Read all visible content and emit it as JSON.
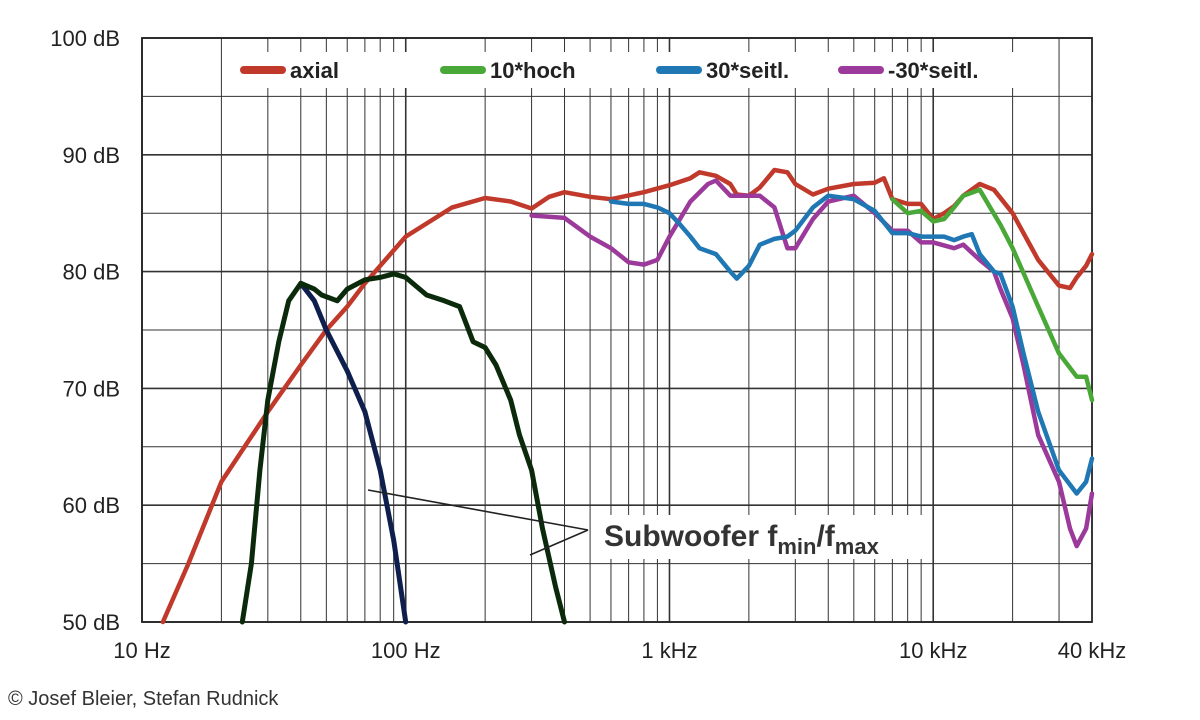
{
  "copyright": "© Josef Bleier, Stefan Rudnick",
  "chart_data": {
    "type": "line",
    "xscale": "log",
    "xlim": [
      10,
      40000
    ],
    "ylim": [
      50,
      100
    ],
    "grid": true,
    "legend_position": "top",
    "x_ticks": [
      {
        "value": 10,
        "label": "10 Hz"
      },
      {
        "value": 100,
        "label": "100 Hz"
      },
      {
        "value": 1000,
        "label": "1 kHz"
      },
      {
        "value": 10000,
        "label": "10 kHz"
      },
      {
        "value": 40000,
        "label": "40 kHz"
      }
    ],
    "y_ticks": [
      {
        "value": 100,
        "label": "100 dB"
      },
      {
        "value": 90,
        "label": "90 dB"
      },
      {
        "value": 80,
        "label": "80 dB"
      },
      {
        "value": 70,
        "label": "70 dB"
      },
      {
        "value": 60,
        "label": "60 dB"
      },
      {
        "value": 50,
        "label": "50 dB"
      }
    ],
    "legend": [
      {
        "name": "axial",
        "color": "#c0392b"
      },
      {
        "name": "10*hoch",
        "color": "#4aa838"
      },
      {
        "name": "30*seitl.",
        "color": "#1f77b4"
      },
      {
        "name": "-30*seitl.",
        "color": "#9b3a9b"
      }
    ],
    "annotation": {
      "text": "Subwoofer f",
      "sub1": "min",
      "slash": "/f",
      "sub2": "max"
    },
    "series": [
      {
        "name": "axial",
        "color": "#c0392b",
        "points": [
          [
            12,
            50
          ],
          [
            15,
            55
          ],
          [
            20,
            62
          ],
          [
            30,
            68
          ],
          [
            40,
            72
          ],
          [
            50,
            75
          ],
          [
            60,
            77
          ],
          [
            70,
            79
          ],
          [
            80,
            80.5
          ],
          [
            100,
            83
          ],
          [
            150,
            85.5
          ],
          [
            200,
            86.3
          ],
          [
            250,
            86
          ],
          [
            300,
            85.4
          ],
          [
            350,
            86.4
          ],
          [
            400,
            86.8
          ],
          [
            500,
            86.4
          ],
          [
            600,
            86.2
          ],
          [
            800,
            86.8
          ],
          [
            1000,
            87.4
          ],
          [
            1200,
            88
          ],
          [
            1300,
            88.5
          ],
          [
            1500,
            88.2
          ],
          [
            1700,
            87.5
          ],
          [
            1800,
            86.6
          ],
          [
            2000,
            86.5
          ],
          [
            2200,
            87.2
          ],
          [
            2500,
            88.7
          ],
          [
            2800,
            88.5
          ],
          [
            3000,
            87.5
          ],
          [
            3500,
            86.6
          ],
          [
            4000,
            87.1
          ],
          [
            5000,
            87.5
          ],
          [
            6000,
            87.6
          ],
          [
            6500,
            88
          ],
          [
            7000,
            86.2
          ],
          [
            8000,
            85.8
          ],
          [
            9000,
            85.8
          ],
          [
            10000,
            84.5
          ],
          [
            11000,
            85
          ],
          [
            12000,
            85.6
          ],
          [
            13000,
            86.5
          ],
          [
            15000,
            87.5
          ],
          [
            17000,
            87
          ],
          [
            20000,
            85
          ],
          [
            25000,
            81
          ],
          [
            30000,
            78.8
          ],
          [
            33000,
            78.6
          ],
          [
            35000,
            79.5
          ],
          [
            38000,
            80.5
          ],
          [
            40000,
            81.5
          ]
        ]
      },
      {
        "name": "10*hoch",
        "color": "#4aa838",
        "points": [
          [
            7000,
            86.2
          ],
          [
            8000,
            85
          ],
          [
            9000,
            85.2
          ],
          [
            10000,
            84.3
          ],
          [
            11000,
            84.5
          ],
          [
            12000,
            85.5
          ],
          [
            13000,
            86.5
          ],
          [
            15000,
            87
          ],
          [
            18000,
            84
          ],
          [
            20000,
            82
          ],
          [
            25000,
            77
          ],
          [
            30000,
            73
          ],
          [
            35000,
            71
          ],
          [
            38000,
            71
          ],
          [
            40000,
            69
          ]
        ]
      },
      {
        "name": "30*seitl.",
        "color": "#1f77b4",
        "points": [
          [
            600,
            86
          ],
          [
            700,
            85.8
          ],
          [
            800,
            85.8
          ],
          [
            900,
            85.5
          ],
          [
            1000,
            85
          ],
          [
            1100,
            84
          ],
          [
            1200,
            83
          ],
          [
            1300,
            82
          ],
          [
            1500,
            81.5
          ],
          [
            1700,
            80
          ],
          [
            1800,
            79.4
          ],
          [
            2000,
            80.5
          ],
          [
            2200,
            82.3
          ],
          [
            2500,
            82.8
          ],
          [
            2800,
            83
          ],
          [
            3000,
            83.5
          ],
          [
            3500,
            85.5
          ],
          [
            4000,
            86.5
          ],
          [
            5000,
            86.2
          ],
          [
            6000,
            85.2
          ],
          [
            7000,
            83.3
          ],
          [
            8000,
            83.3
          ],
          [
            9000,
            83
          ],
          [
            10000,
            83
          ],
          [
            11000,
            83
          ],
          [
            12000,
            82.7
          ],
          [
            13000,
            83
          ],
          [
            14000,
            83.2
          ],
          [
            15000,
            81.5
          ],
          [
            17000,
            80
          ],
          [
            18000,
            79.8
          ],
          [
            20000,
            77
          ],
          [
            22000,
            73
          ],
          [
            25000,
            68
          ],
          [
            30000,
            63
          ],
          [
            35000,
            61
          ],
          [
            38000,
            62
          ],
          [
            40000,
            64
          ]
        ]
      },
      {
        "name": "-30*seitl.",
        "color": "#9b3a9b",
        "points": [
          [
            300,
            84.8
          ],
          [
            400,
            84.6
          ],
          [
            500,
            83
          ],
          [
            600,
            82
          ],
          [
            700,
            80.8
          ],
          [
            800,
            80.6
          ],
          [
            900,
            81
          ],
          [
            1000,
            83
          ],
          [
            1200,
            86
          ],
          [
            1400,
            87.5
          ],
          [
            1500,
            87.8
          ],
          [
            1700,
            86.5
          ],
          [
            2000,
            86.5
          ],
          [
            2200,
            86.5
          ],
          [
            2500,
            85.5
          ],
          [
            2800,
            82
          ],
          [
            3000,
            82
          ],
          [
            3500,
            84.5
          ],
          [
            4000,
            86
          ],
          [
            5000,
            86.5
          ],
          [
            6000,
            85
          ],
          [
            7000,
            83.5
          ],
          [
            8000,
            83.5
          ],
          [
            9000,
            82.5
          ],
          [
            10000,
            82.5
          ],
          [
            12000,
            82
          ],
          [
            13000,
            82.3
          ],
          [
            15000,
            81
          ],
          [
            17000,
            80
          ],
          [
            18000,
            78.5
          ],
          [
            20000,
            76
          ],
          [
            22000,
            72
          ],
          [
            25000,
            66
          ],
          [
            30000,
            62
          ],
          [
            33000,
            58
          ],
          [
            35000,
            56.5
          ],
          [
            38000,
            58
          ],
          [
            40000,
            61
          ]
        ]
      },
      {
        "name": "Subwoofer f_min",
        "color": "#0f1f4d",
        "points": [
          [
            40,
            79
          ],
          [
            45,
            77.5
          ],
          [
            50,
            75
          ],
          [
            60,
            71.5
          ],
          [
            70,
            68
          ],
          [
            80,
            63
          ],
          [
            90,
            57
          ],
          [
            100,
            50
          ]
        ]
      },
      {
        "name": "Subwoofer f_max",
        "color": "#0b2a0b",
        "points": [
          [
            24,
            50
          ],
          [
            26,
            55
          ],
          [
            28,
            63
          ],
          [
            30,
            69
          ],
          [
            33,
            74
          ],
          [
            36,
            77.5
          ],
          [
            40,
            79
          ],
          [
            45,
            78.5
          ],
          [
            48,
            78
          ],
          [
            55,
            77.5
          ],
          [
            60,
            78.5
          ],
          [
            70,
            79.3
          ],
          [
            80,
            79.5
          ],
          [
            90,
            79.8
          ],
          [
            100,
            79.5
          ],
          [
            120,
            78
          ],
          [
            140,
            77.5
          ],
          [
            160,
            77
          ],
          [
            180,
            74
          ],
          [
            200,
            73.5
          ],
          [
            220,
            72
          ],
          [
            250,
            69
          ],
          [
            270,
            66
          ],
          [
            300,
            63
          ],
          [
            330,
            58
          ],
          [
            370,
            53
          ],
          [
            400,
            50
          ]
        ]
      }
    ]
  }
}
